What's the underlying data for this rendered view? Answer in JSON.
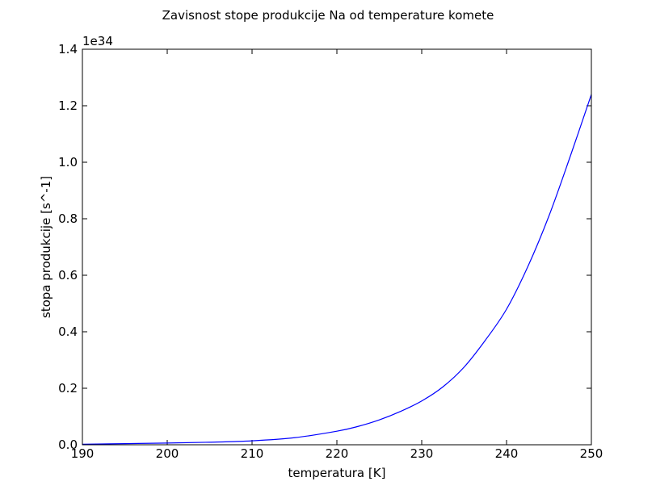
{
  "chart_data": {
    "type": "line",
    "title": "Zavisnost stope produkcije Na od temperature komete",
    "xlabel": "temperatura [K]",
    "ylabel": "stopa produkcije [s^-1]",
    "y_offset_label": "1e34",
    "xlim": [
      190,
      250
    ],
    "ylim": [
      0,
      1.4
    ],
    "x_ticks": [
      190,
      200,
      210,
      220,
      230,
      240,
      250
    ],
    "y_ticks": [
      0.0,
      0.2,
      0.4,
      0.6,
      0.8,
      1.0,
      1.2,
      1.4
    ],
    "x_tick_labels": [
      "190",
      "200",
      "210",
      "220",
      "230",
      "240",
      "250"
    ],
    "y_tick_labels": [
      "0.0",
      "0.2",
      "0.4",
      "0.6",
      "0.8",
      "1.0",
      "1.2",
      "1.4"
    ],
    "grid": false,
    "series": [
      {
        "color": "#0000ff",
        "x": [
          190,
          195,
          200,
          205,
          210,
          215,
          220,
          222.5,
          225,
          227.5,
          230,
          232.5,
          235,
          237.5,
          240,
          242.5,
          245,
          247.5,
          250
        ],
        "y": [
          0.002,
          0.004,
          0.006,
          0.009,
          0.014,
          0.025,
          0.048,
          0.065,
          0.088,
          0.118,
          0.155,
          0.205,
          0.275,
          0.37,
          0.48,
          0.63,
          0.81,
          1.02,
          1.24
        ]
      }
    ]
  }
}
